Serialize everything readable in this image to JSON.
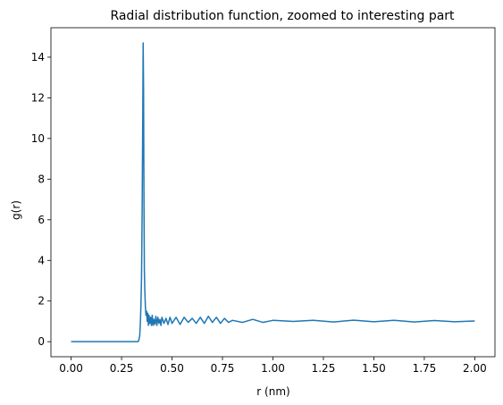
{
  "chart_data": {
    "type": "line",
    "title": "Radial distribution function, zoomed to interesting part",
    "xlabel": "r (nm)",
    "ylabel": "g(r)",
    "xlim": [
      -0.1,
      2.1
    ],
    "ylim": [
      -0.74,
      15.45
    ],
    "xticks": [
      0.0,
      0.25,
      0.5,
      0.75,
      1.0,
      1.25,
      1.5,
      1.75,
      2.0
    ],
    "xtick_labels": [
      "0.00",
      "0.25",
      "0.50",
      "0.75",
      "1.00",
      "1.25",
      "1.50",
      "1.75",
      "2.00"
    ],
    "yticks": [
      0,
      2,
      4,
      6,
      8,
      10,
      12,
      14
    ],
    "ytick_labels": [
      "0",
      "2",
      "4",
      "6",
      "8",
      "10",
      "12",
      "14"
    ],
    "grid": false,
    "series": [
      {
        "color": "#1f77b4",
        "x": [
          0.0,
          0.31,
          0.33,
          0.335,
          0.34,
          0.343,
          0.346,
          0.349,
          0.352,
          0.355,
          0.357,
          0.359,
          0.361,
          0.363,
          0.365,
          0.368,
          0.371,
          0.374,
          0.377,
          0.38,
          0.383,
          0.386,
          0.39,
          0.394,
          0.398,
          0.402,
          0.406,
          0.41,
          0.415,
          0.42,
          0.425,
          0.43,
          0.435,
          0.44,
          0.445,
          0.45,
          0.46,
          0.47,
          0.48,
          0.49,
          0.5,
          0.52,
          0.54,
          0.56,
          0.58,
          0.6,
          0.62,
          0.64,
          0.66,
          0.68,
          0.7,
          0.72,
          0.74,
          0.76,
          0.78,
          0.8,
          0.85,
          0.9,
          0.95,
          1.0,
          1.1,
          1.2,
          1.3,
          1.4,
          1.5,
          1.6,
          1.7,
          1.8,
          1.9,
          2.0
        ],
        "y": [
          0.0,
          0.0,
          0.0,
          0.05,
          0.3,
          0.9,
          1.8,
          3.2,
          6.5,
          11.0,
          14.7,
          12.5,
          7.0,
          3.5,
          2.6,
          1.7,
          1.3,
          1.5,
          1.0,
          1.4,
          0.8,
          1.3,
          0.9,
          1.2,
          0.8,
          1.3,
          0.8,
          1.1,
          0.85,
          1.25,
          0.8,
          1.2,
          0.9,
          1.1,
          0.8,
          1.2,
          0.9,
          1.15,
          0.85,
          1.2,
          0.9,
          1.2,
          0.85,
          1.2,
          0.95,
          1.15,
          0.9,
          1.2,
          0.9,
          1.25,
          0.95,
          1.2,
          0.9,
          1.15,
          0.95,
          1.05,
          0.95,
          1.1,
          0.95,
          1.05,
          1.0,
          1.05,
          0.97,
          1.06,
          0.98,
          1.05,
          0.97,
          1.04,
          0.98,
          1.02
        ]
      }
    ]
  }
}
